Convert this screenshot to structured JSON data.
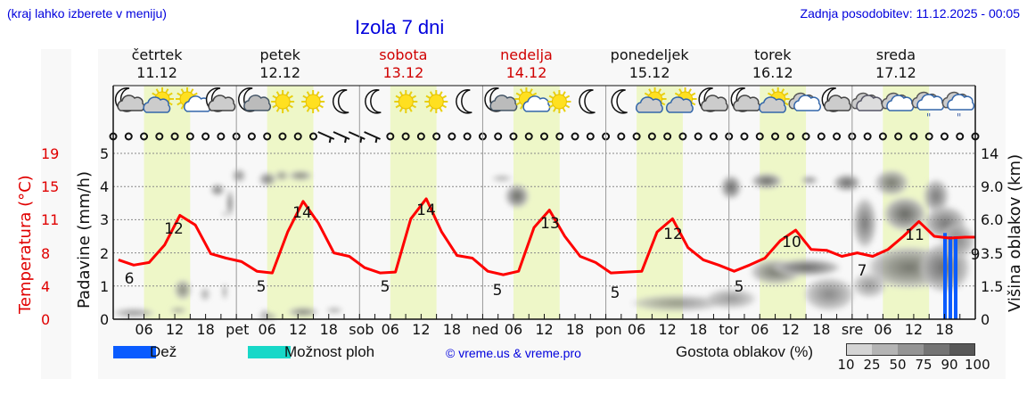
{
  "header": {
    "location_hint": "(kraj lahko izberete v meniju)",
    "title": "Izola 7 dni",
    "last_update": "Zadnja posodobitev: 11.12.2025 - 00:05"
  },
  "days": [
    {
      "name": "četrtek",
      "date": "11.12",
      "weekend": false
    },
    {
      "name": "petek",
      "date": "12.12",
      "weekend": false
    },
    {
      "name": "sobota",
      "date": "13.12",
      "weekend": true
    },
    {
      "name": "nedelja",
      "date": "14.12",
      "weekend": true
    },
    {
      "name": "ponedeljek",
      "date": "15.12",
      "weekend": false
    },
    {
      "name": "torek",
      "date": "16.12",
      "weekend": false
    },
    {
      "name": "sreda",
      "date": "17.12",
      "weekend": false
    }
  ],
  "weather_icons": [
    [
      "moon-cloud",
      "sun-cloud",
      "sun-cloud-light",
      "moon-cloud"
    ],
    [
      "moon-cloud-small",
      "sun",
      "sun",
      "moon"
    ],
    [
      "moon",
      "sun",
      "sun",
      "moon"
    ],
    [
      "moon-cloud-small",
      "sun-cloud-light",
      "sun",
      "moon"
    ],
    [
      "moon",
      "sun-cloud",
      "sun-cloud",
      "moon-cloud"
    ],
    [
      "moon-cloud",
      "sun-cloud",
      "cloud",
      "moon-cloud"
    ],
    [
      "cloud-overcast",
      "cloud",
      "cloud-drizzle",
      "cloud-drizzle"
    ]
  ],
  "axes": {
    "temperature_title": "Temperatura (°C)",
    "temperature_ticks": [
      "19",
      "15",
      "11",
      "8",
      "4",
      "0"
    ],
    "precip_title": "Padavine (mm/h)",
    "precip_ticks": [
      "5",
      "4",
      "3",
      "2",
      "1",
      "0"
    ],
    "cloud_height_title": "Višina oblakov (km)",
    "cloud_height_ticks": [
      "14",
      "9.0",
      "6.0",
      "3.5",
      "1.5",
      "0"
    ],
    "x_ticks": [
      "06",
      "12",
      "18",
      "pet",
      "06",
      "12",
      "18",
      "sob",
      "06",
      "12",
      "18",
      "ned",
      "06",
      "12",
      "18",
      "pon",
      "06",
      "12",
      "18",
      "tor",
      "06",
      "12",
      "18",
      "sre",
      "06",
      "12",
      "18"
    ]
  },
  "legend": {
    "rain_label": "Dež",
    "rain_color": "#0a5cff",
    "storm_label": "Možnost ploh",
    "storm_color": "#18d8c8",
    "copyright": "© vreme.us & vreme.pro",
    "cloud_density_label": "Gostota oblakov (%)",
    "cloud_density_ticks": [
      "10",
      "25",
      "50",
      "75",
      "90",
      "100"
    ],
    "cloud_density_colors": [
      "#d4d4d4",
      "#b4b4b4",
      "#949494",
      "#747474",
      "#585858"
    ]
  },
  "chart_data": {
    "type": "line",
    "title": "Izola 7 dni",
    "xlabel": "",
    "ylabel": "Temperatura (°C)",
    "ylim": [
      0,
      19
    ],
    "x": [
      "11.12 00",
      "11.12 03",
      "11.12 06",
      "11.12 09",
      "11.12 12",
      "11.12 15",
      "11.12 18",
      "11.12 21",
      "12.12 00",
      "12.12 03",
      "12.12 06",
      "12.12 09",
      "12.12 12",
      "12.12 15",
      "12.12 18",
      "12.12 21",
      "13.12 00",
      "13.12 03",
      "13.12 06",
      "13.12 09",
      "13.12 12",
      "13.12 15",
      "13.12 18",
      "13.12 21",
      "14.12 00",
      "14.12 03",
      "14.12 06",
      "14.12 09",
      "14.12 12",
      "14.12 15",
      "14.12 18",
      "14.12 21",
      "15.12 00",
      "15.12 03",
      "15.12 06",
      "15.12 09",
      "15.12 12",
      "15.12 15",
      "15.12 18",
      "15.12 21",
      "16.12 00",
      "16.12 03",
      "16.12 06",
      "16.12 09",
      "16.12 12",
      "16.12 15",
      "16.12 18",
      "16.12 21",
      "17.12 00",
      "17.12 03",
      "17.12 06",
      "17.12 09",
      "17.12 12",
      "17.12 15",
      "17.12 18",
      "17.12 21"
    ],
    "series": [
      {
        "name": "Temperatura (°C)",
        "color": "#ff0000",
        "values": [
          6.8,
          6.2,
          6.5,
          8.5,
          11.9,
          10.8,
          7.5,
          7.0,
          6.6,
          5.5,
          5.3,
          10.0,
          13.5,
          11.0,
          7.6,
          7.2,
          5.9,
          5.3,
          5.4,
          11.5,
          13.8,
          10.0,
          7.3,
          7.0,
          5.5,
          5.1,
          5.5,
          10.5,
          12.5,
          9.5,
          7.2,
          6.5,
          5.3,
          5.4,
          5.5,
          10.0,
          11.5,
          8.2,
          6.8,
          6.2,
          5.5,
          6.2,
          7.0,
          9.0,
          10.2,
          8.0,
          7.9,
          7.2,
          7.6,
          7.2,
          8.0,
          9.5,
          11.2,
          9.5,
          9.3,
          9.4
        ]
      },
      {
        "name": "Dež (mm/h)",
        "color": "#0a5cff",
        "points": [
          {
            "x": "17.12 19",
            "value": 2.6
          },
          {
            "x": "17.12 20",
            "value": 2.5
          },
          {
            "x": "17.12 21",
            "value": 2.5
          }
        ]
      }
    ],
    "daily_labels": {
      "max": [
        12,
        14,
        14,
        13,
        12,
        10,
        11
      ],
      "min": [
        6,
        5,
        5,
        5,
        5,
        5,
        7
      ],
      "last": 9
    },
    "secondary_axes": {
      "precip_mm_h": [
        0,
        5
      ],
      "cloud_height_km": [
        "0",
        "1.5",
        "3.5",
        "6.0",
        "9.0",
        "14"
      ]
    },
    "wind": "calm (circles) most hours; NW wind barbs 12.12 18:00 – 13.12 03:00",
    "daytime_shading": "06–15 each day (light yellow-green)",
    "grid": true,
    "legend_position": "bottom"
  }
}
